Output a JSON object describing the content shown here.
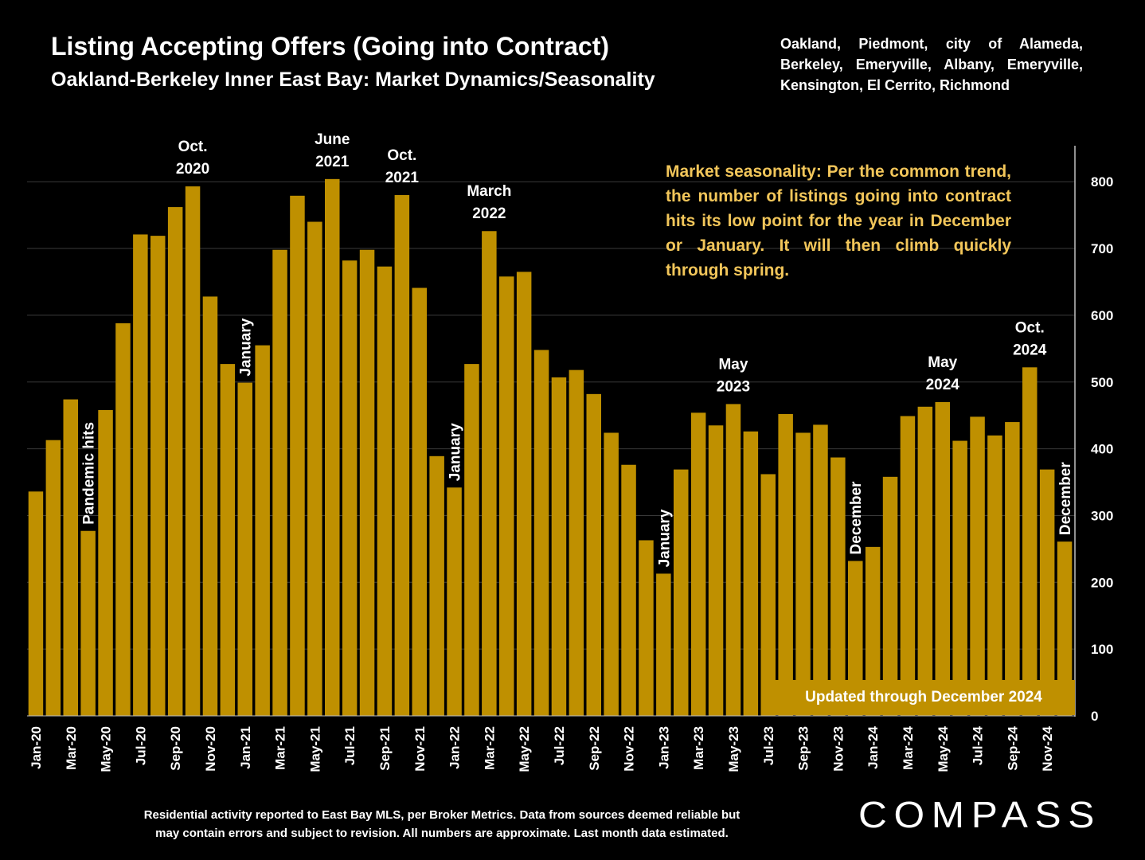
{
  "title": "Listing Accepting Offers (Going into Contract)",
  "subtitle": "Oakland-Berkeley Inner East Bay: Market Dynamics/Seasonality",
  "areas": "Oakland, Piedmont, city of Alameda, Berkeley, Emeryville, Albany, Emeryville, Kensington, El Cerrito, Richmond",
  "callout": "Market seasonality:  Per the common trend, the number of listings going into contract hits its low point for the year in December or January. It will then climb quickly through spring.",
  "updated_label": "Updated through December 2024",
  "footnote_line1": "Residential activity reported to East Bay MLS, per Broker Metrics. Data from sources deemed reliable but",
  "footnote_line2": "may contain errors and subject to revision. All numbers are approximate. Last month data estimated.",
  "logo_text": "COMPASS",
  "colors": {
    "bar": "#bf9000",
    "callout": "#f2c65a",
    "background": "#000000",
    "grid": "#3a3a3a"
  },
  "chart_data": {
    "type": "bar",
    "ylim": [
      0,
      850
    ],
    "yticks": [
      0,
      100,
      200,
      300,
      400,
      500,
      600,
      700,
      800
    ],
    "y_axis_side": "right",
    "grid": true,
    "categories": [
      "Jan-20",
      "Feb-20",
      "Mar-20",
      "Apr-20",
      "May-20",
      "Jun-20",
      "Jul-20",
      "Aug-20",
      "Sep-20",
      "Oct-20",
      "Nov-20",
      "Dec-20",
      "Jan-21",
      "Feb-21",
      "Mar-21",
      "Apr-21",
      "May-21",
      "Jun-21",
      "Jul-21",
      "Aug-21",
      "Sep-21",
      "Oct-21",
      "Nov-21",
      "Dec-21",
      "Jan-22",
      "Feb-22",
      "Mar-22",
      "Apr-22",
      "May-22",
      "Jun-22",
      "Jul-22",
      "Aug-22",
      "Sep-22",
      "Oct-22",
      "Nov-22",
      "Dec-22",
      "Jan-23",
      "Feb-23",
      "Mar-23",
      "Apr-23",
      "May-23",
      "Jun-23",
      "Jul-23",
      "Aug-23",
      "Sep-23",
      "Oct-23",
      "Nov-23",
      "Dec-23",
      "Jan-24",
      "Feb-24",
      "Mar-24",
      "Apr-24",
      "May-24",
      "Jun-24",
      "Jul-24",
      "Aug-24",
      "Sep-24",
      "Oct-24",
      "Nov-24",
      "Dec-24"
    ],
    "tick_labels_shown": [
      "Jan-20",
      "Mar-20",
      "May-20",
      "Jul-20",
      "Sep-20",
      "Nov-20",
      "Jan-21",
      "Mar-21",
      "May-21",
      "Jul-21",
      "Sep-21",
      "Nov-21",
      "Jan-22",
      "Mar-22",
      "May-22",
      "Jul-22",
      "Sep-22",
      "Nov-22",
      "Jan-23",
      "Mar-23",
      "May-23",
      "Jul-23",
      "Sep-23",
      "Nov-23",
      "Jan-24",
      "Mar-24",
      "May-24",
      "Jul-24",
      "Sep-24",
      "Nov-24"
    ],
    "values": [
      336,
      413,
      474,
      277,
      458,
      588,
      721,
      719,
      762,
      793,
      628,
      527,
      499,
      555,
      698,
      779,
      740,
      804,
      682,
      698,
      673,
      780,
      641,
      389,
      342,
      527,
      726,
      658,
      665,
      548,
      507,
      518,
      482,
      424,
      376,
      263,
      213,
      369,
      454,
      435,
      467,
      426,
      362,
      452,
      424,
      436,
      387,
      232,
      253,
      358,
      449,
      463,
      470,
      412,
      448,
      420,
      440,
      522,
      369,
      261
    ],
    "annotations": [
      {
        "text": "Pandemic hits",
        "index": 3,
        "vertical": true
      },
      {
        "text": "Oct.",
        "text2": "2020",
        "index": 9,
        "vertical": false
      },
      {
        "text": "January",
        "index": 12,
        "vertical": true
      },
      {
        "text": "June",
        "text2": "2021",
        "index": 17,
        "vertical": false
      },
      {
        "text": "Oct.",
        "text2": "2021",
        "index": 21,
        "vertical": false
      },
      {
        "text": "January",
        "index": 24,
        "vertical": true
      },
      {
        "text": "March",
        "text2": "2022",
        "index": 26,
        "vertical": false
      },
      {
        "text": "January",
        "index": 36,
        "vertical": true
      },
      {
        "text": "May",
        "text2": "2023",
        "index": 40,
        "vertical": false
      },
      {
        "text": "December",
        "index": 47,
        "vertical": true
      },
      {
        "text": "May",
        "text2": "2024",
        "index": 52,
        "vertical": false
      },
      {
        "text": "Oct.",
        "text2": "2024",
        "index": 57,
        "vertical": false
      },
      {
        "text": "December",
        "index": 59,
        "vertical": true
      }
    ]
  }
}
